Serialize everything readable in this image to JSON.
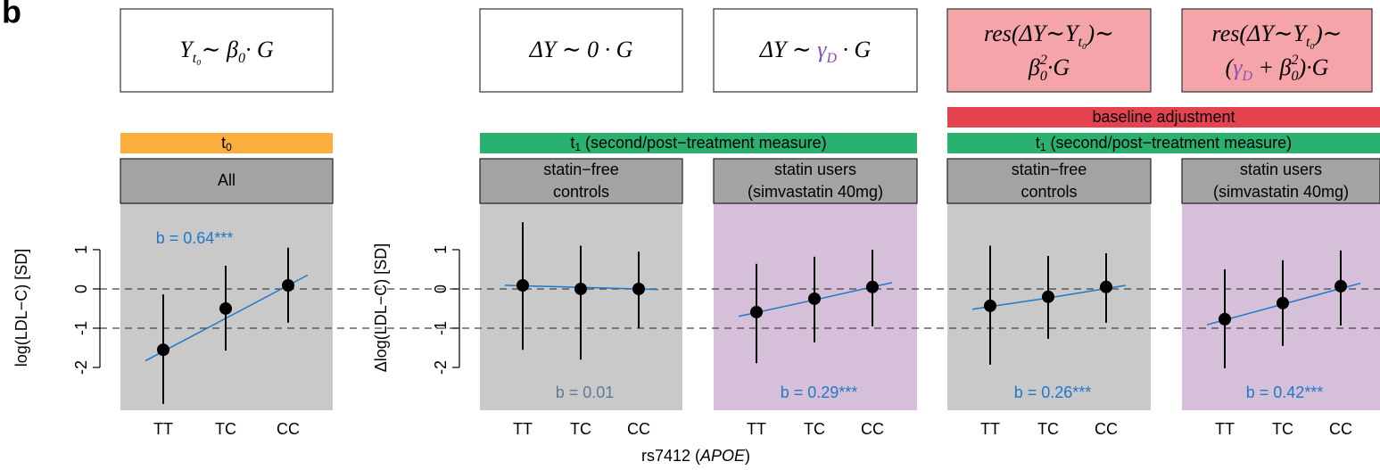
{
  "panel_label": "b",
  "xlabel": [
    "rs7412 (",
    "APOE",
    ")"
  ],
  "reference_lines": [
    0,
    -1
  ],
  "strips": [
    {
      "label": "t",
      "sub": "0",
      "color": "#f9ae3d"
    },
    {
      "label": "t",
      "sub": "1",
      "rest": " (second/post−treatment measure)",
      "color": "#2ab06f"
    },
    {
      "label": "t",
      "sub": "1",
      "rest": " (second/post−treatment measure)",
      "color": "#2ab06f"
    },
    {
      "label": "baseline adjustment",
      "color": "#e4434f"
    }
  ],
  "chart_data": [
    {
      "type": "errorbar",
      "header": [
        "All"
      ],
      "background": "#c9c9c9",
      "box_color": "#ffffff",
      "formula": [
        [
          {
            "text": "Y"
          },
          {
            "text": "t₀",
            "kind": "sub"
          },
          {
            "text": "∼  β"
          },
          {
            "text": "0",
            "kind": "sub"
          },
          {
            "text": "· G"
          }
        ]
      ],
      "categories": [
        "TT",
        "TC",
        "CC"
      ],
      "values": [
        -1.55,
        -0.5,
        0.09
      ],
      "lower": [
        -2.93,
        -1.57,
        -0.86
      ],
      "upper": [
        -0.14,
        0.59,
        1.05
      ],
      "fit": [
        -1.59,
        -0.75,
        0.09
      ],
      "annotation": "b = 0.64***",
      "annotation_color": "#1f78c8",
      "ylabel": "log(LDL−C) [SD]",
      "ylim": [
        -3.09,
        2.18
      ],
      "yticks": [
        -2,
        -1,
        0,
        1
      ]
    },
    {
      "type": "errorbar",
      "header": [
        "statin−free",
        "controls"
      ],
      "background": "#c9c9c9",
      "box_color": "#ffffff",
      "formula": [
        [
          {
            "text": "ΔY ∼  0 · G"
          }
        ]
      ],
      "categories": [
        "TT",
        "TC",
        "CC"
      ],
      "values": [
        0.09,
        0.0,
        0.0
      ],
      "lower": [
        -1.55,
        -1.8,
        -1.0
      ],
      "upper": [
        1.7,
        1.1,
        0.95
      ],
      "fit": [
        0.08,
        0.04,
        0.0
      ],
      "annotation": "b = 0.01",
      "annotation_color": "#5b7b94",
      "ylabel": "Δlog(LDL−C) [SD]",
      "ylim": [
        -3.09,
        2.18
      ],
      "yticks": [
        -2,
        -1,
        0,
        1
      ]
    },
    {
      "type": "errorbar",
      "header": [
        "statin users",
        "(simvastatin 40mg)"
      ],
      "background": "#d6c0d9",
      "box_color": "#ffffff",
      "formula": [
        [
          {
            "text": "ΔY ∼ "
          },
          {
            "text": "γ",
            "color": "#8a4fb0"
          },
          {
            "text": "D",
            "kind": "sub",
            "color": "#8a4fb0"
          },
          {
            "text": " · G"
          }
        ]
      ],
      "categories": [
        "TT",
        "TC",
        "CC"
      ],
      "values": [
        -0.59,
        -0.25,
        0.05
      ],
      "lower": [
        -1.89,
        -1.36,
        -0.95
      ],
      "upper": [
        0.64,
        0.82,
        1.0
      ],
      "fit": [
        -0.6,
        -0.28,
        0.05
      ],
      "annotation": "b = 0.29***",
      "annotation_color": "#1f78c8",
      "ylim": [
        -3.09,
        2.18
      ]
    },
    {
      "type": "errorbar",
      "header": [
        "statin−free",
        "controls"
      ],
      "background": "#c9c9c9",
      "box_color": "#f5a5a9",
      "formula": [
        [
          {
            "text": "res(ΔY∼Y"
          },
          {
            "text": "t₀",
            "kind": "sub"
          },
          {
            "text": ")∼"
          }
        ],
        [
          {
            "text": "β"
          },
          {
            "text": "0",
            "kind": "sub"
          },
          {
            "text": "2",
            "kind": "sup"
          },
          {
            "text": "·G"
          }
        ]
      ],
      "categories": [
        "TT",
        "TC",
        "CC"
      ],
      "values": [
        -0.43,
        -0.2,
        0.05
      ],
      "lower": [
        -1.93,
        -1.27,
        -0.86
      ],
      "upper": [
        1.1,
        0.84,
        0.91
      ],
      "fit": [
        -0.45,
        -0.23,
        0.01
      ],
      "annotation": "b = 0.26***",
      "annotation_color": "#1f78c8",
      "ylim": [
        -3.09,
        2.18
      ]
    },
    {
      "type": "errorbar",
      "header": [
        "statin users",
        "(simvastatin 40mg)"
      ],
      "background": "#d6c0d9",
      "box_color": "#f5a5a9",
      "formula": [
        [
          {
            "text": "res(ΔY∼Y"
          },
          {
            "text": "t₀",
            "kind": "sub"
          },
          {
            "text": ")∼"
          }
        ],
        [
          {
            "text": "("
          },
          {
            "text": "γ",
            "color": "#8a4fb0"
          },
          {
            "text": "D",
            "kind": "sub",
            "color": "#8a4fb0"
          },
          {
            "text": " + β"
          },
          {
            "text": "0",
            "kind": "sub"
          },
          {
            "text": "2",
            "kind": "sup"
          },
          {
            "text": ")·G"
          }
        ]
      ],
      "categories": [
        "TT",
        "TC",
        "CC"
      ],
      "values": [
        -0.77,
        -0.36,
        0.07
      ],
      "lower": [
        -2.02,
        -1.45,
        -0.93
      ],
      "upper": [
        0.5,
        0.73,
        0.98
      ],
      "fit": [
        -0.79,
        -0.39,
        0.01
      ],
      "annotation": "b = 0.42***",
      "annotation_color": "#1f78c8",
      "ylim": [
        -3.09,
        2.18
      ]
    }
  ]
}
